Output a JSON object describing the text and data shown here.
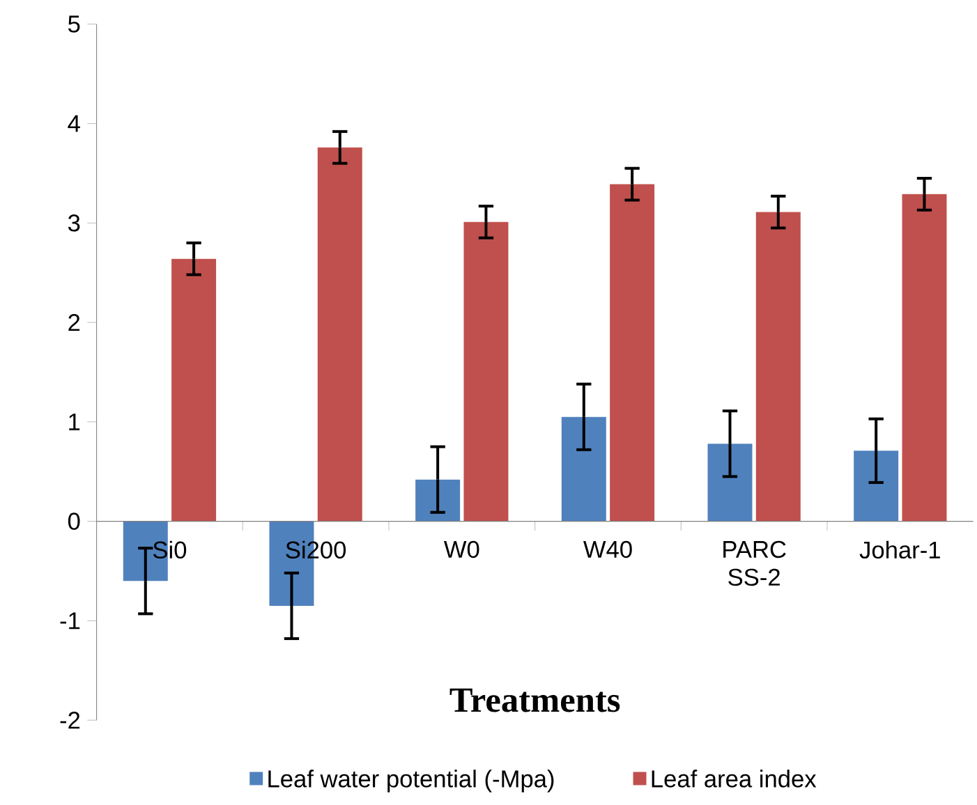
{
  "chart_data": {
    "type": "bar",
    "xlabel": "Treatments",
    "categories": [
      "Si0",
      "Si200",
      "W0",
      "W40",
      "PARC SS-2",
      "Johar-1"
    ],
    "series": [
      {
        "name": "Leaf water potential (-Mpa)",
        "color": "#4f81bd",
        "values": [
          -0.6,
          -0.85,
          0.42,
          1.05,
          0.78,
          0.71
        ],
        "errors": [
          0.33,
          0.33,
          0.33,
          0.33,
          0.33,
          0.32
        ]
      },
      {
        "name": "Leaf area index",
        "color": "#c0504d",
        "values": [
          2.64,
          3.76,
          3.01,
          3.39,
          3.11,
          3.29
        ],
        "errors": [
          0.16,
          0.16,
          0.16,
          0.16,
          0.16,
          0.16
        ]
      }
    ],
    "ylim": [
      -2,
      5
    ],
    "yticks": [
      -2,
      -1,
      0,
      1,
      2,
      3,
      4,
      5
    ],
    "grid": false,
    "legend": "bottom"
  }
}
